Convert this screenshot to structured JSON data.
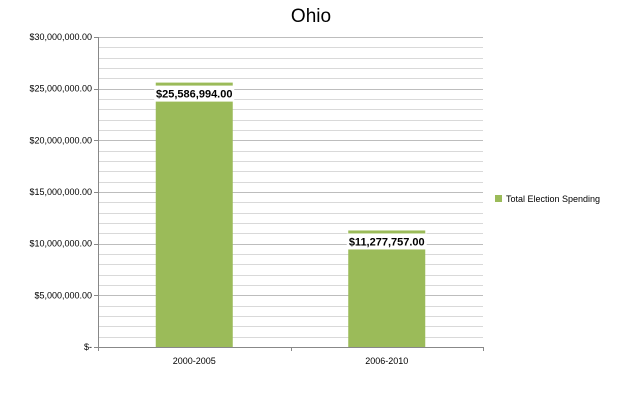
{
  "chart_data": {
    "type": "bar",
    "title": "Ohio",
    "categories": [
      "2000-2005",
      "2006-2010"
    ],
    "series": [
      {
        "name": "Total Election Spending",
        "values": [
          25586994,
          11277757
        ],
        "data_labels": [
          "$25,586,994.00",
          "$11,277,757.00"
        ],
        "color": "#9BBB59"
      }
    ],
    "ylim": [
      0,
      30000000
    ],
    "y_ticks": [
      0,
      5000000,
      10000000,
      15000000,
      20000000,
      25000000,
      30000000
    ],
    "y_tick_labels": [
      "$-",
      "$5,000,000.00",
      "$10,000,000.00",
      "$15,000,000.00",
      "$20,000,000.00",
      "$25,000,000.00",
      "$30,000,000.00"
    ],
    "y_minor_step": 1000000,
    "grid": true,
    "legend_position": "right"
  }
}
